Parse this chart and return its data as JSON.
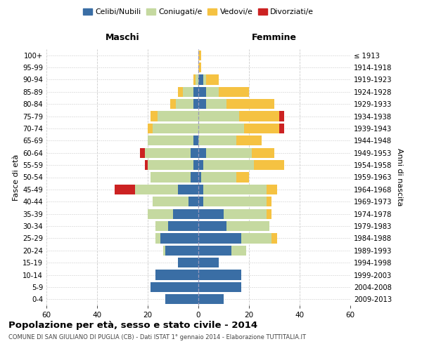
{
  "age_groups": [
    "0-4",
    "5-9",
    "10-14",
    "15-19",
    "20-24",
    "25-29",
    "30-34",
    "35-39",
    "40-44",
    "45-49",
    "50-54",
    "55-59",
    "60-64",
    "65-69",
    "70-74",
    "75-79",
    "80-84",
    "85-89",
    "90-94",
    "95-99",
    "100+"
  ],
  "birth_years": [
    "2009-2013",
    "2004-2008",
    "1999-2003",
    "1994-1998",
    "1989-1993",
    "1984-1988",
    "1979-1983",
    "1974-1978",
    "1969-1973",
    "1964-1968",
    "1959-1963",
    "1954-1958",
    "1949-1953",
    "1944-1948",
    "1939-1943",
    "1934-1938",
    "1929-1933",
    "1924-1928",
    "1919-1923",
    "1914-1918",
    "≤ 1913"
  ],
  "male_celibe": [
    13,
    19,
    17,
    8,
    13,
    15,
    12,
    10,
    4,
    8,
    3,
    2,
    3,
    2,
    0,
    0,
    2,
    2,
    0,
    0,
    0
  ],
  "male_coniugato": [
    0,
    0,
    0,
    0,
    1,
    2,
    5,
    10,
    14,
    17,
    16,
    18,
    18,
    18,
    18,
    16,
    7,
    4,
    1,
    0,
    0
  ],
  "male_vedovo": [
    0,
    0,
    0,
    0,
    0,
    0,
    0,
    0,
    0,
    0,
    0,
    0,
    0,
    0,
    2,
    3,
    2,
    2,
    1,
    0,
    0
  ],
  "male_divorziato": [
    0,
    0,
    0,
    0,
    0,
    0,
    0,
    0,
    0,
    8,
    0,
    1,
    2,
    0,
    0,
    0,
    0,
    0,
    0,
    0,
    0
  ],
  "female_celibe": [
    10,
    17,
    17,
    8,
    13,
    17,
    11,
    10,
    2,
    2,
    1,
    2,
    3,
    0,
    0,
    0,
    3,
    3,
    2,
    0,
    0
  ],
  "female_coniugato": [
    0,
    0,
    0,
    0,
    6,
    12,
    17,
    17,
    25,
    25,
    14,
    20,
    18,
    15,
    18,
    16,
    8,
    5,
    1,
    0,
    0
  ],
  "female_vedovo": [
    0,
    0,
    0,
    0,
    0,
    2,
    0,
    2,
    2,
    4,
    5,
    12,
    9,
    10,
    14,
    16,
    19,
    12,
    5,
    1,
    1
  ],
  "female_divorziato": [
    0,
    0,
    0,
    0,
    0,
    0,
    0,
    0,
    0,
    0,
    0,
    0,
    0,
    0,
    2,
    2,
    0,
    0,
    0,
    0,
    0
  ],
  "color_celibe": "#3a6ea5",
  "color_coniugato": "#c5d9a0",
  "color_vedovo": "#f5c242",
  "color_divorziato": "#cc2222",
  "title": "Popolazione per età, sesso e stato civile - 2014",
  "subtitle": "COMUNE DI SAN GIULIANO DI PUGLIA (CB) - Dati ISTAT 1° gennaio 2014 - Elaborazione TUTTITALIA.IT",
  "label_maschi": "Maschi",
  "label_femmine": "Femmine",
  "ylabel_left": "Fasce di età",
  "ylabel_right": "Anni di nascita",
  "xlim": 60,
  "bg_color": "#ffffff",
  "grid_color": "#cccccc"
}
